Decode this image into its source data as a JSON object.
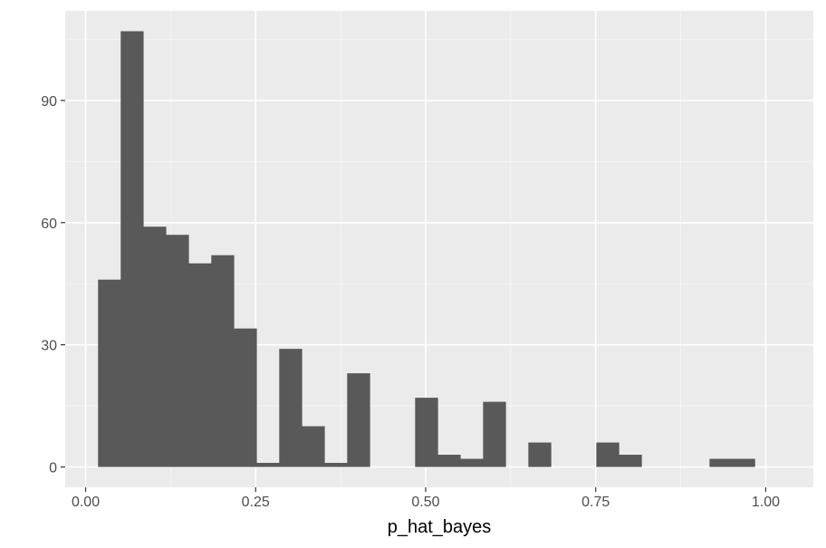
{
  "chart_data": {
    "type": "bar",
    "title": "",
    "xlabel": "p_hat_bayes",
    "ylabel": "",
    "xlim": [
      -0.03,
      1.07
    ],
    "ylim": [
      -5,
      112
    ],
    "grid": true,
    "legend": "none",
    "x_ticks": [
      {
        "value": 0.0,
        "label": "0.00"
      },
      {
        "value": 0.25,
        "label": "0.25"
      },
      {
        "value": 0.5,
        "label": "0.50"
      },
      {
        "value": 0.75,
        "label": "0.75"
      },
      {
        "value": 1.0,
        "label": "1.00"
      }
    ],
    "y_ticks": [
      {
        "value": 0,
        "label": "0"
      },
      {
        "value": 30,
        "label": "30"
      },
      {
        "value": 60,
        "label": "60"
      },
      {
        "value": 90,
        "label": "90"
      }
    ],
    "bin_width": 0.0333,
    "bin_start": 0.0183,
    "counts": [
      46,
      107,
      59,
      57,
      50,
      52,
      34,
      1,
      29,
      10,
      1,
      23,
      0,
      0,
      17,
      3,
      2,
      16,
      0,
      6,
      0,
      0,
      6,
      3,
      0,
      0,
      0,
      2,
      2
    ],
    "colors": {
      "bar": "#595959",
      "panel": "#ebebeb",
      "grid_major": "#ffffff",
      "tick": "#333333"
    }
  }
}
